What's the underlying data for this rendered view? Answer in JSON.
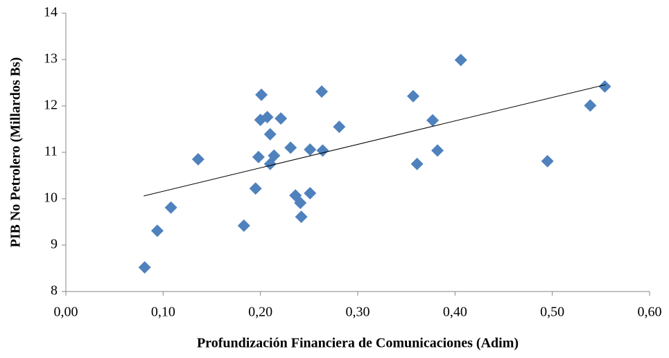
{
  "chart_data": {
    "type": "scatter",
    "x_label": "Profundización  Financiera de Comunicaciones (Adim)",
    "y_label": "PIB No Petrolero (Millardos  Bs)",
    "color": "#4f81bd",
    "grid": false,
    "xlim": [
      0,
      0.6
    ],
    "ylim": [
      8,
      14
    ],
    "xticks": [
      {
        "value": 0,
        "label": "0,00"
      },
      {
        "value": 0.1,
        "label": "0,10"
      },
      {
        "value": 0.2,
        "label": "0,20"
      },
      {
        "value": 0.3,
        "label": "0,30"
      },
      {
        "value": 0.4,
        "label": "0,40"
      },
      {
        "value": 0.5,
        "label": "0,50"
      },
      {
        "value": 0.6,
        "label": "0,60"
      }
    ],
    "yticks": [
      8,
      9,
      10,
      11,
      12,
      13,
      14
    ],
    "x": [
      0.081,
      0.094,
      0.108,
      0.136,
      0.183,
      0.195,
      0.198,
      0.201,
      0.2,
      0.207,
      0.21,
      0.21,
      0.214,
      0.221,
      0.231,
      0.236,
      0.241,
      0.242,
      0.251,
      0.251,
      0.263,
      0.264,
      0.281,
      0.357,
      0.361,
      0.377,
      0.382,
      0.406,
      0.495,
      0.539,
      0.554
    ],
    "values": [
      8.52,
      9.31,
      9.81,
      10.85,
      9.42,
      10.22,
      10.9,
      12.24,
      11.7,
      11.76,
      11.39,
      10.75,
      10.93,
      11.73,
      11.1,
      10.07,
      9.91,
      9.61,
      11.06,
      10.12,
      12.31,
      11.04,
      11.55,
      12.21,
      10.75,
      11.69,
      11.04,
      12.99,
      10.81,
      12.01,
      12.42
    ],
    "trendline": {
      "x": [
        0.08,
        0.555
      ],
      "y": [
        10.06,
        12.46
      ],
      "color": "#000000"
    }
  }
}
